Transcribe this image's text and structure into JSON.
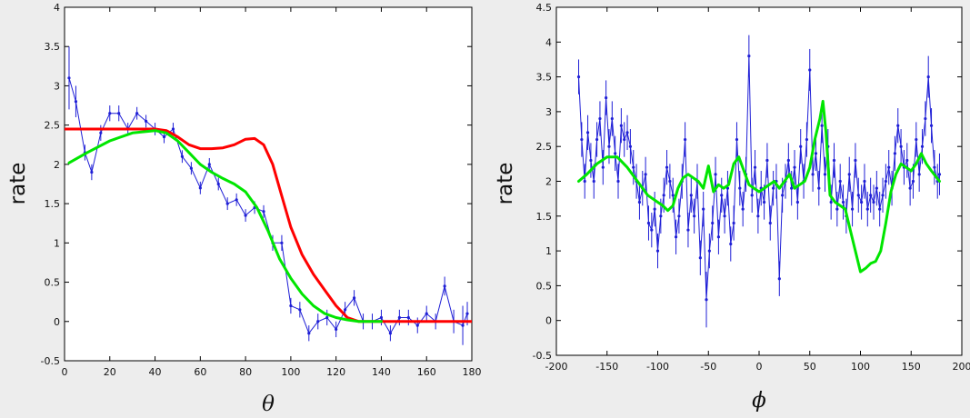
{
  "chart_data": [
    {
      "type": "line",
      "xlabel": "θ",
      "ylabel": "rate",
      "xlim": [
        0,
        180
      ],
      "ylim": [
        -0.5,
        4
      ],
      "xticks": [
        0,
        20,
        40,
        60,
        80,
        100,
        120,
        140,
        160,
        180
      ],
      "yticks": [
        -0.5,
        0,
        0.5,
        1,
        1.5,
        2,
        2.5,
        3,
        3.5,
        4
      ],
      "grid": false,
      "series": [
        {
          "color": "#1f1fd6",
          "style": "thin line with markers and error bars",
          "x": [
            2,
            5,
            9,
            12,
            16,
            20,
            24,
            28,
            32,
            36,
            40,
            44,
            48,
            52,
            56,
            60,
            64,
            68,
            72,
            76,
            80,
            84,
            88,
            92,
            96,
            100,
            104,
            108,
            112,
            116,
            120,
            124,
            128,
            132,
            136,
            140,
            144,
            148,
            152,
            156,
            160,
            164,
            168,
            172,
            176,
            178
          ],
          "values": [
            3.1,
            2.8,
            2.15,
            1.9,
            2.4,
            2.65,
            2.65,
            2.45,
            2.65,
            2.55,
            2.45,
            2.35,
            2.45,
            2.1,
            1.95,
            1.7,
            2.0,
            1.75,
            1.5,
            1.55,
            1.35,
            1.45,
            1.4,
            1.0,
            1.0,
            0.2,
            0.15,
            -0.15,
            0.0,
            0.05,
            -0.1,
            0.15,
            0.3,
            0.0,
            0.0,
            0.05,
            -0.15,
            0.05,
            0.05,
            -0.05,
            0.1,
            0.0,
            0.45,
            0.0,
            -0.05,
            0.1
          ],
          "errors": [
            0.4,
            0.2,
            0.1,
            0.1,
            0.1,
            0.1,
            0.1,
            0.08,
            0.08,
            0.08,
            0.08,
            0.08,
            0.08,
            0.08,
            0.08,
            0.08,
            0.08,
            0.08,
            0.08,
            0.08,
            0.08,
            0.08,
            0.08,
            0.1,
            0.1,
            0.1,
            0.1,
            0.1,
            0.1,
            0.1,
            0.1,
            0.1,
            0.1,
            0.1,
            0.1,
            0.1,
            0.1,
            0.1,
            0.1,
            0.1,
            0.1,
            0.1,
            0.12,
            0.15,
            0.25,
            0.15
          ]
        },
        {
          "color": "#ff0000",
          "style": "thick line",
          "x": [
            0,
            40,
            45,
            50,
            55,
            60,
            65,
            70,
            75,
            80,
            84,
            88,
            92,
            96,
            100,
            105,
            110,
            115,
            120,
            125,
            130,
            140,
            160,
            180
          ],
          "values": [
            2.45,
            2.45,
            2.43,
            2.35,
            2.25,
            2.2,
            2.2,
            2.21,
            2.25,
            2.32,
            2.33,
            2.25,
            2.0,
            1.6,
            1.2,
            0.85,
            0.6,
            0.4,
            0.2,
            0.05,
            0.0,
            0.0,
            0.0,
            0.0
          ]
        },
        {
          "color": "#00e600",
          "style": "thick line",
          "x": [
            2,
            10,
            20,
            30,
            40,
            45,
            50,
            55,
            60,
            65,
            70,
            75,
            80,
            85,
            90,
            95,
            100,
            105,
            110,
            115,
            120,
            125,
            130,
            135,
            140
          ],
          "values": [
            2.02,
            2.15,
            2.3,
            2.4,
            2.43,
            2.4,
            2.3,
            2.15,
            2.0,
            1.9,
            1.82,
            1.75,
            1.65,
            1.45,
            1.15,
            0.8,
            0.55,
            0.35,
            0.2,
            0.1,
            0.05,
            0.02,
            0.0,
            0.0,
            0.0
          ]
        }
      ]
    },
    {
      "type": "line",
      "xlabel": "ϕ",
      "ylabel": "rate",
      "xlim": [
        -200,
        200
      ],
      "ylim": [
        -0.5,
        4.5
      ],
      "xticks": [
        -200,
        -150,
        -100,
        -50,
        0,
        50,
        100,
        150,
        200
      ],
      "yticks": [
        -0.5,
        0,
        0.5,
        1,
        1.5,
        2,
        2.5,
        3,
        3.5,
        4,
        4.5
      ],
      "grid": false,
      "series": [
        {
          "color": "#1f1fd6",
          "style": "thin line with markers and error bars",
          "x": [
            -178,
            -175,
            -172,
            -169,
            -166,
            -163,
            -160,
            -157,
            -154,
            -151,
            -148,
            -145,
            -142,
            -139,
            -136,
            -133,
            -130,
            -127,
            -124,
            -121,
            -118,
            -115,
            -112,
            -109,
            -106,
            -103,
            -100,
            -97,
            -94,
            -91,
            -88,
            -85,
            -82,
            -79,
            -76,
            -73,
            -70,
            -67,
            -64,
            -61,
            -58,
            -55,
            -52,
            -49,
            -46,
            -43,
            -40,
            -37,
            -34,
            -31,
            -28,
            -25,
            -22,
            -19,
            -16,
            -13,
            -10,
            -7,
            -4,
            -1,
            2,
            5,
            8,
            11,
            14,
            17,
            20,
            23,
            26,
            29,
            32,
            35,
            38,
            41,
            44,
            47,
            50,
            53,
            56,
            59,
            62,
            65,
            68,
            71,
            74,
            77,
            80,
            83,
            86,
            89,
            92,
            95,
            98,
            101,
            104,
            107,
            110,
            113,
            116,
            119,
            122,
            125,
            128,
            131,
            134,
            137,
            140,
            143,
            146,
            149,
            152,
            155,
            158,
            161,
            164,
            167,
            170,
            173,
            176,
            178
          ],
          "values": [
            3.5,
            2.6,
            2.0,
            2.7,
            2.3,
            2.0,
            2.6,
            2.9,
            2.2,
            3.2,
            2.5,
            2.9,
            2.4,
            2.0,
            2.8,
            2.6,
            2.7,
            2.5,
            2.2,
            2.0,
            1.7,
            1.9,
            2.1,
            1.4,
            1.3,
            1.6,
            1.0,
            1.5,
            1.8,
            2.2,
            2.0,
            1.8,
            1.2,
            1.5,
            2.0,
            2.6,
            1.3,
            1.8,
            1.5,
            2.0,
            0.9,
            1.6,
            0.3,
            1.0,
            1.4,
            2.1,
            1.2,
            1.8,
            1.5,
            1.9,
            1.1,
            1.4,
            2.6,
            1.9,
            1.6,
            2.1,
            3.8,
            1.8,
            2.2,
            1.5,
            1.9,
            1.7,
            2.3,
            1.4,
            1.9,
            2.0,
            0.6,
            1.8,
            2.0,
            2.3,
            1.9,
            2.2,
            1.7,
            2.5,
            2.0,
            2.6,
            3.6,
            2.1,
            2.4,
            1.9,
            2.8,
            2.1,
            2.5,
            1.7,
            2.3,
            1.6,
            2.0,
            1.7,
            1.5,
            2.1,
            1.6,
            2.3,
            1.8,
            1.7,
            2.0,
            1.6,
            1.8,
            1.7,
            1.9,
            1.6,
            1.8,
            2.0,
            2.2,
            1.9,
            2.4,
            2.8,
            2.5,
            2.2,
            2.3,
            1.9,
            2.0,
            2.6,
            2.1,
            2.5,
            2.9,
            3.5,
            2.8,
            2.2,
            2.0,
            2.1
          ],
          "errors": [
            0.25,
            0.25,
            0.25,
            0.25,
            0.25,
            0.25,
            0.25,
            0.25,
            0.25,
            0.25,
            0.25,
            0.25,
            0.25,
            0.25,
            0.25,
            0.25,
            0.25,
            0.25,
            0.25,
            0.25,
            0.25,
            0.25,
            0.25,
            0.25,
            0.25,
            0.25,
            0.25,
            0.25,
            0.25,
            0.25,
            0.25,
            0.25,
            0.25,
            0.25,
            0.25,
            0.25,
            0.25,
            0.25,
            0.25,
            0.25,
            0.25,
            0.25,
            0.4,
            0.25,
            0.25,
            0.25,
            0.25,
            0.25,
            0.25,
            0.25,
            0.25,
            0.25,
            0.25,
            0.25,
            0.25,
            0.25,
            0.3,
            0.25,
            0.25,
            0.25,
            0.25,
            0.25,
            0.25,
            0.25,
            0.25,
            0.25,
            0.25,
            0.25,
            0.25,
            0.25,
            0.25,
            0.25,
            0.25,
            0.25,
            0.25,
            0.25,
            0.3,
            0.25,
            0.25,
            0.25,
            0.25,
            0.25,
            0.25,
            0.25,
            0.25,
            0.25,
            0.25,
            0.25,
            0.25,
            0.25,
            0.25,
            0.25,
            0.25,
            0.25,
            0.25,
            0.25,
            0.25,
            0.25,
            0.25,
            0.25,
            0.25,
            0.25,
            0.25,
            0.25,
            0.25,
            0.25,
            0.25,
            0.25,
            0.25,
            0.25,
            0.25,
            0.25,
            0.25,
            0.25,
            0.25,
            0.3,
            0.25,
            0.25,
            0.25,
            0.3
          ]
        },
        {
          "color": "#00e600",
          "style": "thick line",
          "x": [
            -178,
            -170,
            -160,
            -150,
            -140,
            -130,
            -120,
            -110,
            -100,
            -95,
            -90,
            -85,
            -80,
            -75,
            -70,
            -65,
            -60,
            -55,
            -50,
            -45,
            -40,
            -35,
            -30,
            -25,
            -20,
            -15,
            -10,
            -5,
            0,
            5,
            10,
            15,
            20,
            25,
            30,
            35,
            40,
            45,
            50,
            55,
            60,
            63,
            66,
            70,
            75,
            80,
            85,
            90,
            95,
            100,
            105,
            110,
            115,
            120,
            125,
            130,
            135,
            140,
            145,
            150,
            155,
            160,
            165,
            170,
            178
          ],
          "values": [
            2.0,
            2.1,
            2.25,
            2.35,
            2.35,
            2.2,
            2.0,
            1.8,
            1.7,
            1.65,
            1.58,
            1.65,
            1.9,
            2.05,
            2.1,
            2.05,
            2.0,
            1.9,
            2.22,
            1.85,
            1.95,
            1.9,
            1.95,
            2.25,
            2.35,
            2.15,
            1.95,
            1.9,
            1.85,
            1.9,
            1.95,
            2.0,
            1.9,
            2.0,
            2.1,
            1.9,
            1.95,
            2.0,
            2.2,
            2.6,
            2.9,
            3.15,
            2.7,
            1.8,
            1.7,
            1.65,
            1.6,
            1.3,
            1.0,
            0.7,
            0.75,
            0.82,
            0.85,
            1.0,
            1.4,
            1.85,
            2.1,
            2.25,
            2.2,
            2.15,
            2.25,
            2.4,
            2.25,
            2.15,
            2.0
          ]
        }
      ]
    }
  ]
}
